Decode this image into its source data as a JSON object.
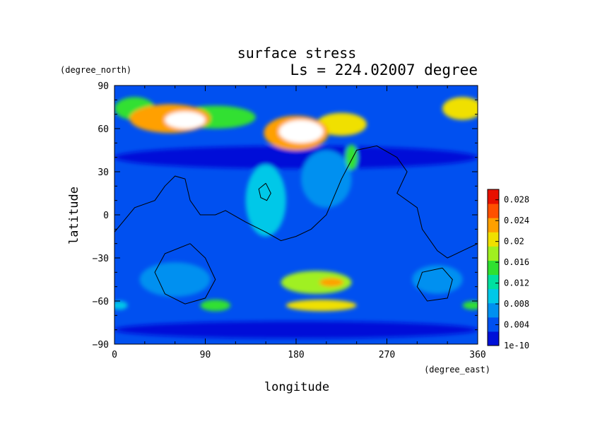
{
  "chart_data": {
    "type": "heatmap",
    "title": "surface stress",
    "subtitle": "Ls = 224.02007 degree",
    "xlabel": "longitude",
    "ylabel": "latitude",
    "xunit": "(degree_east)",
    "yunit": "(degree_north)",
    "xlim": [
      0,
      360
    ],
    "ylim": [
      -90,
      90
    ],
    "x_ticks": [
      0,
      90,
      180,
      270,
      360
    ],
    "y_ticks": [
      90,
      60,
      30,
      0,
      -30,
      -60,
      -90
    ],
    "x_tick_labels": [
      "0",
      "90",
      "180",
      "270",
      "360"
    ],
    "y_tick_labels": [
      "90",
      "60",
      "30",
      "0",
      "−30",
      "−60",
      "−90"
    ],
    "colorbar": {
      "min": 0,
      "max": 0.03,
      "tick_values": [
        0.028,
        0.024,
        0.02,
        0.016,
        0.012,
        0.008,
        0.004,
        0
      ],
      "tick_labels": [
        "0.028",
        "0.024",
        "0.02",
        "0.016",
        "0.012",
        "0.008",
        "0.004",
        "1e-10"
      ],
      "colors": [
        "#0010d8",
        "#0050f0",
        "#0090f0",
        "#00c8e8",
        "#00e0a0",
        "#30e030",
        "#a0f020",
        "#f0e000",
        "#ffa000",
        "#ff5000",
        "#e81000"
      ]
    },
    "hotspots": [
      {
        "lon": 55,
        "lat": 67,
        "rx": 40,
        "ry": 10,
        "value": 0.024
      },
      {
        "lon": 100,
        "lat": 68,
        "rx": 40,
        "ry": 8,
        "value": 0.016
      },
      {
        "lon": 70,
        "lat": 66,
        "rx": 20,
        "ry": 6,
        "value": 0.032
      },
      {
        "lon": 180,
        "lat": 57,
        "rx": 32,
        "ry": 12,
        "value": 0.024
      },
      {
        "lon": 185,
        "lat": 58,
        "rx": 22,
        "ry": 8,
        "value": 0.032
      },
      {
        "lon": 225,
        "lat": 63,
        "rx": 25,
        "ry": 8,
        "value": 0.02
      },
      {
        "lon": 235,
        "lat": 40,
        "rx": 6,
        "ry": 9,
        "value": 0.016
      },
      {
        "lon": 345,
        "lat": 74,
        "rx": 20,
        "ry": 8,
        "value": 0.02
      },
      {
        "lon": 20,
        "lat": 74,
        "rx": 20,
        "ry": 8,
        "value": 0.014
      },
      {
        "lon": 200,
        "lat": -47,
        "rx": 35,
        "ry": 8,
        "value": 0.018
      },
      {
        "lon": 215,
        "lat": -47,
        "rx": 12,
        "ry": 3,
        "value": 0.024
      },
      {
        "lon": 205,
        "lat": -63,
        "rx": 35,
        "ry": 4,
        "value": 0.02
      },
      {
        "lon": 100,
        "lat": -63,
        "rx": 15,
        "ry": 4,
        "value": 0.014
      },
      {
        "lon": 355,
        "lat": -63,
        "rx": 10,
        "ry": 3,
        "value": 0.014
      },
      {
        "lon": 5,
        "lat": -63,
        "rx": 8,
        "ry": 3,
        "value": 0.01
      },
      {
        "lon": 150,
        "lat": 10,
        "rx": 20,
        "ry": 25,
        "value": 0.009
      },
      {
        "lon": 210,
        "lat": 25,
        "rx": 25,
        "ry": 20,
        "value": 0.007
      },
      {
        "lon": 60,
        "lat": -45,
        "rx": 35,
        "ry": 12,
        "value": 0.006
      },
      {
        "lon": 320,
        "lat": -45,
        "rx": 25,
        "ry": 10,
        "value": 0.006
      }
    ],
    "cold_bands": [
      {
        "lon": 180,
        "lat": 40,
        "rx": 180,
        "ry": 8,
        "value": 0.002
      },
      {
        "lon": 180,
        "lat": -80,
        "rx": 180,
        "ry": 6,
        "value": 0.002
      }
    ],
    "contours": [
      [
        [
          0,
          -12
        ],
        [
          20,
          5
        ],
        [
          40,
          10
        ],
        [
          50,
          20
        ],
        [
          60,
          27
        ],
        [
          70,
          25
        ],
        [
          75,
          10
        ],
        [
          85,
          0
        ],
        [
          100,
          0
        ],
        [
          110,
          3
        ],
        [
          130,
          -5
        ],
        [
          150,
          -12
        ],
        [
          165,
          -18
        ],
        [
          180,
          -15
        ],
        [
          195,
          -10
        ],
        [
          210,
          0
        ],
        [
          225,
          25
        ],
        [
          240,
          45
        ],
        [
          260,
          48
        ],
        [
          280,
          40
        ],
        [
          290,
          30
        ],
        [
          280,
          15
        ],
        [
          300,
          5
        ],
        [
          305,
          -10
        ],
        [
          320,
          -25
        ],
        [
          330,
          -30
        ],
        [
          345,
          -25
        ],
        [
          360,
          -20
        ]
      ],
      [
        [
          150,
          22
        ],
        [
          143,
          18
        ],
        [
          145,
          12
        ],
        [
          151,
          10
        ],
        [
          155,
          15
        ],
        [
          150,
          22
        ]
      ],
      [
        [
          75,
          -20
        ],
        [
          90,
          -30
        ],
        [
          100,
          -45
        ],
        [
          90,
          -58
        ],
        [
          70,
          -62
        ],
        [
          50,
          -55
        ],
        [
          40,
          -40
        ],
        [
          50,
          -27
        ],
        [
          75,
          -20
        ]
      ],
      [
        [
          325,
          -37
        ],
        [
          335,
          -45
        ],
        [
          330,
          -58
        ],
        [
          310,
          -60
        ],
        [
          300,
          -50
        ],
        [
          305,
          -40
        ],
        [
          325,
          -37
        ]
      ]
    ]
  }
}
